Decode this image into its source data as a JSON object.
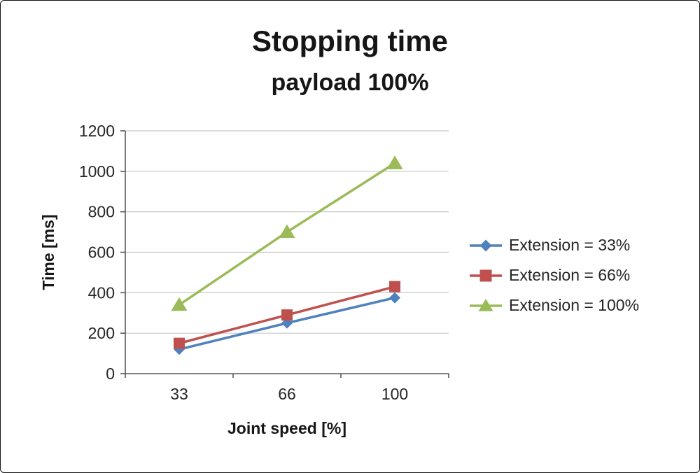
{
  "chart_data": {
    "type": "line",
    "title": "Stopping time",
    "subtitle": "payload 100%",
    "categories": [
      33,
      66,
      100
    ],
    "series": [
      {
        "name": "Extension = 33%",
        "color": "#4F81BD",
        "marker": "diamond",
        "values": [
          120,
          250,
          375
        ]
      },
      {
        "name": "Extension = 66%",
        "color": "#C0504D",
        "marker": "square",
        "values": [
          150,
          290,
          430
        ]
      },
      {
        "name": "Extension = 100%",
        "color": "#9BBB59",
        "marker": "triangle",
        "values": [
          340,
          700,
          1040
        ]
      }
    ],
    "xlabel": "Joint speed [%]",
    "ylabel": "Time [ms]",
    "ylim": [
      0,
      1200
    ],
    "ytick_step": 200,
    "grid": "horizontal",
    "legend_position": "right",
    "colors": {
      "gridline": "#C6C6C6",
      "axis": "#595959",
      "text": "#262626"
    }
  }
}
